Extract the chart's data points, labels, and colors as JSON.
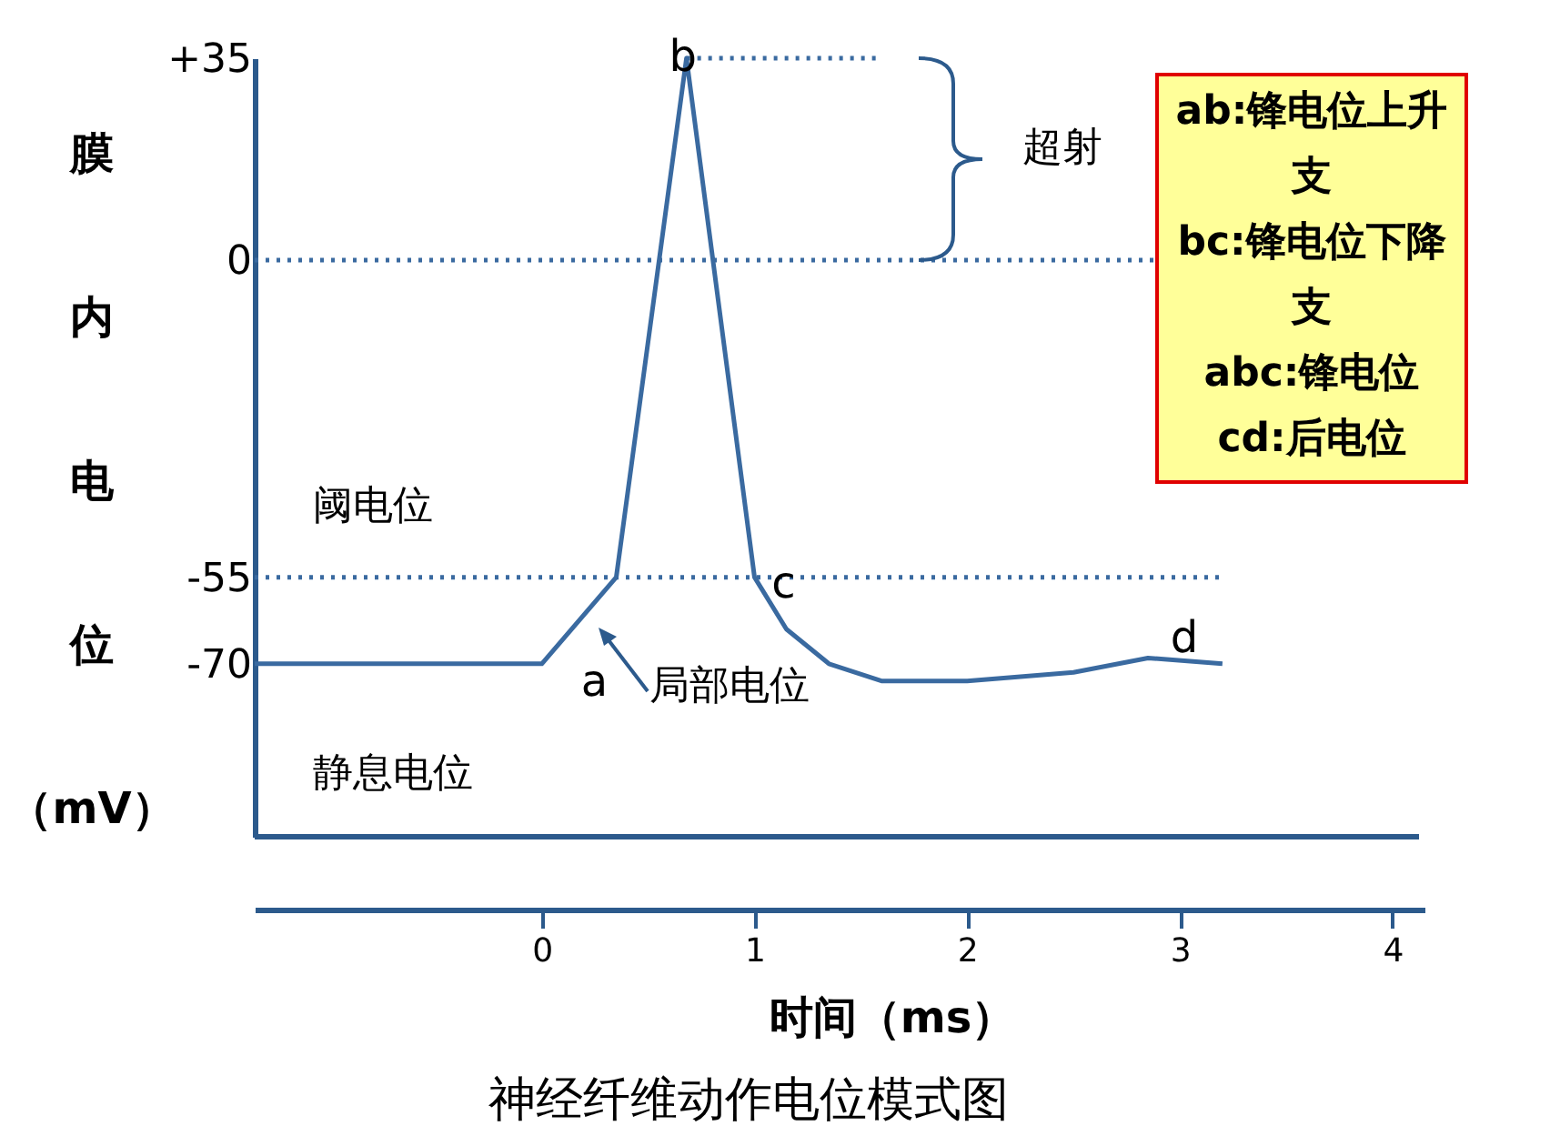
{
  "chart_data": {
    "type": "line",
    "title": "神经纤维动作电位模式图",
    "xlabel": "时间（ms）",
    "ylabel": "膜内电位（mV）",
    "x": [
      -1.35,
      0,
      0.35,
      0.68,
      1.0,
      1.15,
      1.35,
      1.6,
      2.0,
      2.5,
      2.85,
      3.2
    ],
    "series": [
      {
        "color": "#3a6aa0",
        "values": [
          -70,
          -70,
          -55,
          35,
          -55,
          -64,
          -70,
          -73,
          -73,
          -71.5,
          -69,
          -70
        ]
      }
    ],
    "xlim": [
      -1.35,
      4.15
    ],
    "ylim": [
      -100,
      35
    ],
    "xticks": [
      0,
      1,
      2,
      3,
      4
    ],
    "yticks": [
      {
        "value": 35,
        "label": "+35"
      },
      0,
      {
        "value": -55,
        "label": "-55"
      },
      {
        "value": -70,
        "label": "-70"
      }
    ],
    "ref_lines": [
      {
        "axis": "y",
        "value": 35,
        "line_style": "dotted",
        "color": "#3a6aa0"
      },
      {
        "axis": "y",
        "value": 0,
        "line_style": "dotted",
        "color": "#3a6aa0"
      },
      {
        "axis": "y",
        "value": -55,
        "line_style": "dotted",
        "color": "#3a6aa0"
      }
    ],
    "annotations": [
      {
        "text": "a",
        "x": 0.35,
        "y": -55
      },
      {
        "text": "b",
        "x": 0.68,
        "y": 35
      },
      {
        "text": "c",
        "x": 1.0,
        "y": -55
      },
      {
        "text": "d",
        "x": 2.85,
        "y": -69
      },
      "阈电位",
      "静息电位",
      "局部电位",
      "超射",
      "ab:锋电位上升支",
      "bc:锋电位下降支",
      "abc:锋电位",
      "cd:后电位"
    ],
    "grid": false,
    "legend": false,
    "marker": "none",
    "line_style": "solid"
  }
}
